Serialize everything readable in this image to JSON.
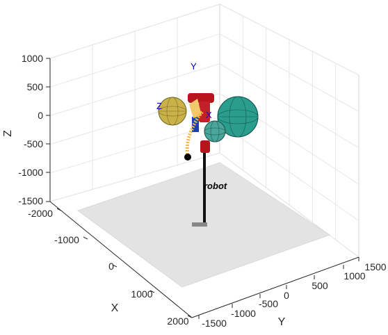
{
  "chart_data": {
    "type": "scatter",
    "title": "",
    "view": "3d",
    "xlabel": "X",
    "ylabel": "Y",
    "zlabel": "Z",
    "xlim": [
      -2000,
      2000
    ],
    "ylim": [
      -1500,
      1500
    ],
    "zlim": [
      -1500,
      1000
    ],
    "x_ticks": [
      "-2000",
      "-1000",
      "0",
      "1000",
      "2000"
    ],
    "y_ticks": [
      "-1500",
      "-1000",
      "-500",
      "0",
      "500",
      "1000",
      "1500"
    ],
    "z_ticks": [
      "1000",
      "500",
      "0",
      "-500",
      "-1000",
      "-1500"
    ],
    "grid": true,
    "floor_color": "#e3e3e3",
    "objects": {
      "robot_label": "robot",
      "frame_labels": [
        "Y",
        "Z",
        "X"
      ],
      "spheres": [
        {
          "name": "sphere-left",
          "color": "#c9b24a"
        },
        {
          "name": "sphere-right-large",
          "color": "#2a9d8f"
        },
        {
          "name": "sphere-right-small",
          "color": "#4aa59a"
        }
      ],
      "link_color": "#b8141e",
      "pole_color": "#111111"
    }
  }
}
